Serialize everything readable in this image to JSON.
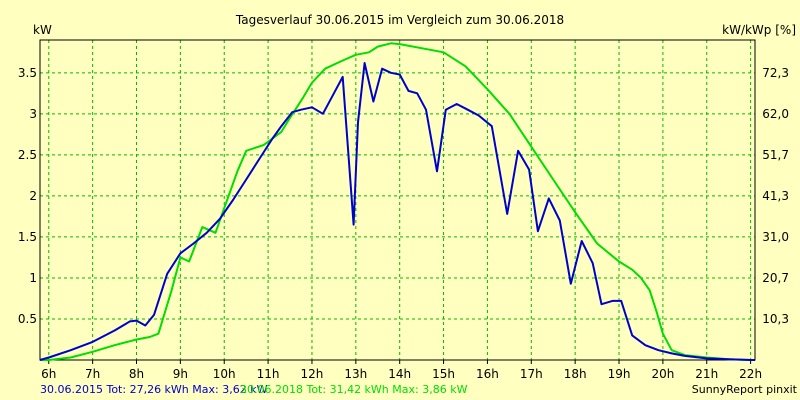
{
  "chart_data": {
    "type": "line",
    "title": "Tagesverlauf 30.06.2015 im Vergleich zum 30.06.2018",
    "ylabel_left": "kW",
    "ylabel_right": "kW/kWp [%]",
    "x_unit": "hour of day",
    "xlim": [
      5.8,
      22.1
    ],
    "ylim": [
      0,
      3.9
    ],
    "grid": true,
    "x_ticks": [
      {
        "value": 6,
        "label": "6h"
      },
      {
        "value": 7,
        "label": "7h"
      },
      {
        "value": 8,
        "label": "8h"
      },
      {
        "value": 9,
        "label": "9h"
      },
      {
        "value": 10,
        "label": "10h"
      },
      {
        "value": 11,
        "label": "11h"
      },
      {
        "value": 12,
        "label": "12h"
      },
      {
        "value": 13,
        "label": "13h"
      },
      {
        "value": 14,
        "label": "14h"
      },
      {
        "value": 15,
        "label": "15h"
      },
      {
        "value": 16,
        "label": "16h"
      },
      {
        "value": 17,
        "label": "17h"
      },
      {
        "value": 18,
        "label": "18h"
      },
      {
        "value": 19,
        "label": "19h"
      },
      {
        "value": 20,
        "label": "20h"
      },
      {
        "value": 21,
        "label": "21h"
      },
      {
        "value": 22,
        "label": "22h"
      }
    ],
    "y_ticks_left": [
      {
        "value": 0.5,
        "label": "0.5"
      },
      {
        "value": 1,
        "label": "1"
      },
      {
        "value": 1.5,
        "label": "1.5"
      },
      {
        "value": 2,
        "label": "2"
      },
      {
        "value": 2.5,
        "label": "2.5"
      },
      {
        "value": 3,
        "label": "3"
      },
      {
        "value": 3.5,
        "label": "3.5"
      }
    ],
    "y_ticks_right": [
      {
        "value": 0.5,
        "label": "10,3"
      },
      {
        "value": 1,
        "label": "20,7"
      },
      {
        "value": 1.5,
        "label": "31,0"
      },
      {
        "value": 2,
        "label": "41,3"
      },
      {
        "value": 2.5,
        "label": "51,7"
      },
      {
        "value": 3,
        "label": "62,0"
      },
      {
        "value": 3.5,
        "label": "72,3"
      }
    ],
    "series": [
      {
        "legend": "30.06.2015 Tot: 27,26 kWh Max: 3,62 kW",
        "color": "#0000cc",
        "x": [
          5.8,
          6.0,
          6.5,
          7.0,
          7.5,
          7.85,
          8.0,
          8.2,
          8.4,
          8.7,
          9.0,
          9.3,
          9.6,
          9.9,
          10.2,
          10.5,
          10.8,
          11.1,
          11.3,
          11.55,
          11.75,
          12.0,
          12.25,
          12.5,
          12.7,
          12.95,
          13.05,
          13.2,
          13.4,
          13.6,
          13.8,
          14.0,
          14.2,
          14.4,
          14.6,
          14.85,
          15.05,
          15.3,
          15.55,
          15.8,
          16.1,
          16.45,
          16.7,
          16.95,
          17.15,
          17.4,
          17.65,
          17.9,
          18.15,
          18.4,
          18.6,
          18.85,
          19.05,
          19.3,
          19.6,
          19.75,
          19.9,
          20.2,
          20.5,
          21.0,
          21.5,
          22.0,
          22.1
        ],
        "values": [
          0.0,
          0.03,
          0.12,
          0.22,
          0.36,
          0.47,
          0.48,
          0.42,
          0.55,
          1.05,
          1.3,
          1.42,
          1.55,
          1.72,
          1.95,
          2.2,
          2.45,
          2.7,
          2.85,
          3.02,
          3.05,
          3.08,
          3.0,
          3.25,
          3.45,
          1.65,
          2.9,
          3.62,
          3.15,
          3.55,
          3.5,
          3.48,
          3.28,
          3.25,
          3.05,
          2.3,
          3.05,
          3.12,
          3.05,
          2.98,
          2.85,
          1.78,
          2.55,
          2.32,
          1.57,
          1.97,
          1.7,
          0.93,
          1.45,
          1.18,
          0.68,
          0.72,
          0.72,
          0.3,
          0.18,
          0.15,
          0.12,
          0.08,
          0.05,
          0.02,
          0.01,
          0.0,
          0.0
        ]
      },
      {
        "legend": "30.06.2018 Tot: 31,42 kWh Max: 3,86 kW",
        "color": "#00dd00",
        "x": [
          5.8,
          6.0,
          6.5,
          7.0,
          7.5,
          8.0,
          8.3,
          8.5,
          8.8,
          9.0,
          9.2,
          9.5,
          9.8,
          10.0,
          10.3,
          10.5,
          10.9,
          11.3,
          11.5,
          11.8,
          12.0,
          12.3,
          12.7,
          13.0,
          13.3,
          13.5,
          13.8,
          14.0,
          14.5,
          15.0,
          15.5,
          16.0,
          16.5,
          17.0,
          17.5,
          18.0,
          18.5,
          19.0,
          19.3,
          19.5,
          19.7,
          19.85,
          20.0,
          20.2,
          20.5,
          21.0,
          21.5,
          22.0,
          22.1
        ],
        "values": [
          0.0,
          0.0,
          0.03,
          0.1,
          0.18,
          0.25,
          0.28,
          0.32,
          0.85,
          1.25,
          1.2,
          1.62,
          1.55,
          1.85,
          2.3,
          2.55,
          2.62,
          2.78,
          2.95,
          3.2,
          3.38,
          3.55,
          3.65,
          3.72,
          3.75,
          3.82,
          3.86,
          3.85,
          3.8,
          3.75,
          3.58,
          3.3,
          3.0,
          2.6,
          2.2,
          1.8,
          1.42,
          1.2,
          1.1,
          1.0,
          0.85,
          0.6,
          0.32,
          0.12,
          0.06,
          0.03,
          0.01,
          0.0,
          0.0
        ]
      }
    ],
    "footer_right": "SunnyReport pinxit"
  }
}
